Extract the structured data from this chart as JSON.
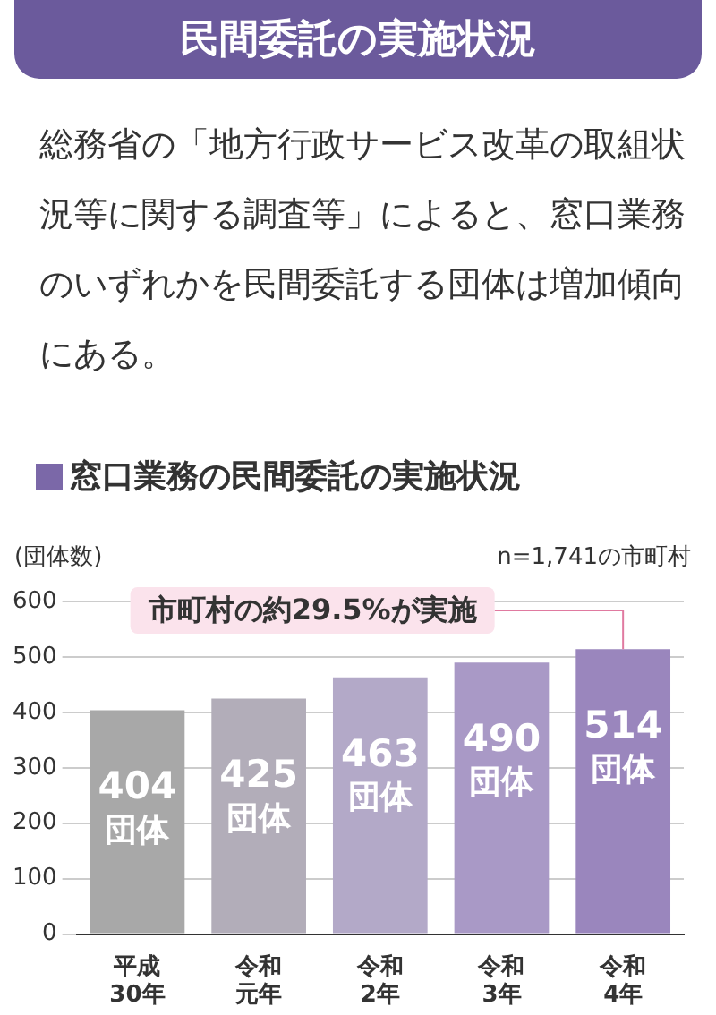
{
  "chart_data": {
    "type": "bar",
    "title": "民間委託の実施状況",
    "subtitle": "窓口業務の民間委託の実施状況",
    "ylabel": "(団体数)",
    "annotations": [
      "総務省の「地方行政サービス改革の取組状況等に関する調査等」によると、窓口業務のいずれかを民間委託する団体は増加傾向にある。",
      "n=1,741の市町村",
      {
        "text": "市町村の約29.5%が実施",
        "x": "令和4年",
        "y": 514
      }
    ],
    "categories": [
      "平成30年",
      "令和元年",
      "令和2年",
      "令和3年",
      "令和4年"
    ],
    "values": [
      404,
      425,
      463,
      490,
      514
    ],
    "colors": [
      "#a8a8a8",
      "#b2adb9",
      "#b3a9c8",
      "#a999c6",
      "#9a86bd"
    ],
    "value_labels": [
      "404\n団体",
      "425\n団体",
      "463\n団体",
      "490\n団体",
      "514\n団体"
    ],
    "ylim": [
      0,
      600
    ],
    "yticks": [
      0,
      100,
      200,
      300,
      400,
      500,
      600
    ],
    "grid": "y",
    "legend": false
  }
}
